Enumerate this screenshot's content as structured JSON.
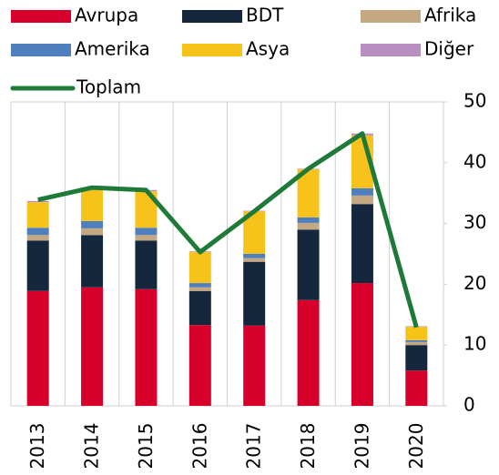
{
  "chart_data": {
    "type": "bar",
    "stacked": true,
    "categories": [
      "2013",
      "2014",
      "2015",
      "2016",
      "2017",
      "2018",
      "2019",
      "2020"
    ],
    "series": [
      {
        "name": "Avrupa",
        "color": "#d6002a",
        "values": [
          18.9,
          19.5,
          19.2,
          13.3,
          13.2,
          17.4,
          20.2,
          5.8
        ]
      },
      {
        "name": "BDT",
        "color": "#14273d",
        "values": [
          8.3,
          8.6,
          8.0,
          5.6,
          10.5,
          11.6,
          13.0,
          4.2
        ]
      },
      {
        "name": "Afrika",
        "color": "#c4a882",
        "values": [
          0.9,
          1.1,
          0.9,
          0.6,
          0.6,
          1.1,
          1.4,
          0.5
        ]
      },
      {
        "name": "Amerika",
        "color": "#4f7fbf",
        "values": [
          1.2,
          1.2,
          1.2,
          0.7,
          0.7,
          0.9,
          1.2,
          0.3
        ]
      },
      {
        "name": "Asya",
        "color": "#f7c21a",
        "values": [
          4.2,
          5.4,
          6.0,
          5.1,
          7.0,
          7.9,
          8.7,
          2.2
        ]
      },
      {
        "name": "Diğer",
        "color": "#b88fc0",
        "values": [
          0.2,
          0.1,
          0.2,
          0.1,
          0.1,
          0.1,
          0.3,
          0.1
        ]
      }
    ],
    "line_series": {
      "name": "Toplam",
      "color": "#1f7a3a",
      "values": [
        33.9,
        35.9,
        35.5,
        25.3,
        32.0,
        39.0,
        44.8,
        12.9
      ]
    },
    "ylim": [
      0,
      50
    ],
    "yticks": [
      0,
      10,
      20,
      30,
      40,
      50
    ],
    "y_axis_side": "right"
  }
}
